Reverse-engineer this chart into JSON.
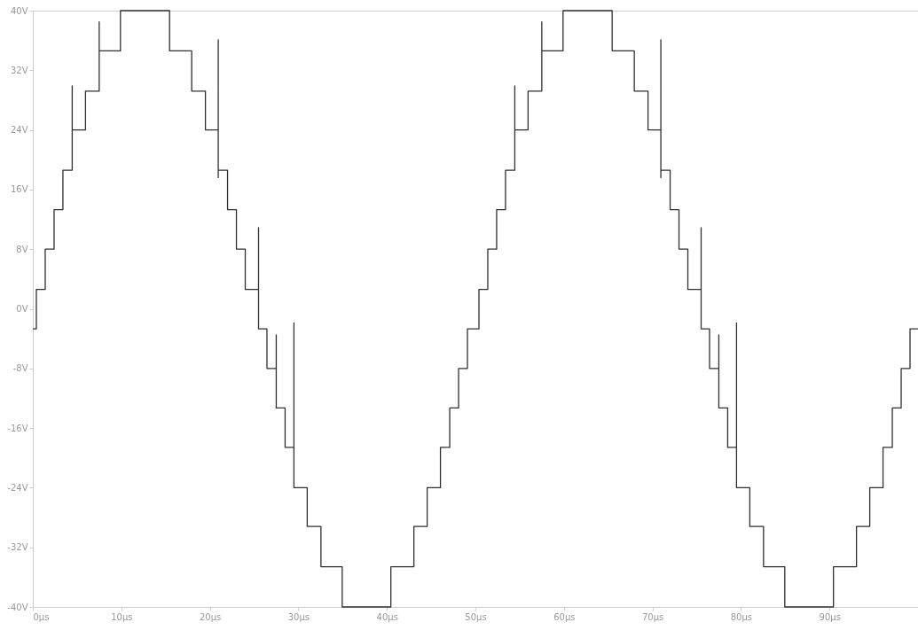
{
  "chart_data": {
    "type": "line",
    "x": [
      0,
      0.4,
      0.4,
      1.4,
      1.4,
      2.4,
      2.4,
      3.4,
      3.4,
      4.45,
      4.45,
      4.45,
      5.95,
      5.95,
      7.5,
      7.5,
      7.5,
      9.9,
      9.9,
      15.45,
      15.45,
      17.95,
      17.95,
      19.5,
      19.5,
      20.95,
      20.95,
      20.95,
      20.95,
      22,
      22,
      23,
      23,
      24,
      24,
      25.5,
      25.5,
      25.5,
      26.45,
      26.45,
      27.5,
      27.5,
      27.5,
      28.5,
      28.5,
      29.5,
      29.5,
      29.5,
      31,
      31,
      32.55,
      32.55,
      34.95,
      34.95,
      40.45,
      40.45,
      43.05,
      43.05,
      44.55,
      44.55,
      46.05,
      46.05,
      47.1,
      47.1,
      48.1,
      48.1,
      49.1,
      49.1,
      50.4,
      50.4,
      51.4,
      51.4,
      52.4,
      52.4,
      53.4,
      53.4,
      54.45,
      54.45,
      54.45,
      55.95,
      55.95,
      57.5,
      57.5,
      57.5,
      59.9,
      59.9,
      65.45,
      65.45,
      67.95,
      67.95,
      69.5,
      69.5,
      70.95,
      70.95,
      70.95,
      70.95,
      72,
      72,
      73,
      73,
      74,
      74,
      75.5,
      75.5,
      75.5,
      76.45,
      76.45,
      77.5,
      77.5,
      77.5,
      78.5,
      78.5,
      79.5,
      79.5,
      79.5,
      81,
      81,
      82.55,
      82.55,
      84.95,
      84.95,
      90.45,
      90.45,
      93.05,
      93.05,
      94.55,
      94.55,
      96.05,
      96.05,
      97.1,
      97.1,
      98.1,
      98.1,
      99.1,
      99.1,
      100
    ],
    "series": [
      {
        "color": "#303030",
        "values": [
          -2.7,
          -2.7,
          2.6,
          2.6,
          8,
          8,
          13.3,
          13.3,
          18.6,
          18.6,
          29.9,
          24,
          24,
          29.2,
          29.2,
          38.5,
          34.6,
          34.6,
          40,
          40,
          34.6,
          34.6,
          29.2,
          29.2,
          24,
          24,
          36.1,
          17.6,
          18.6,
          18.6,
          13.3,
          13.3,
          8,
          8,
          2.6,
          2.6,
          10.9,
          -2.7,
          -2.7,
          -8,
          -8,
          -3.5,
          -13.3,
          -13.3,
          -18.6,
          -18.6,
          -1.9,
          -24,
          -24,
          -29.2,
          -29.2,
          -34.6,
          -34.6,
          -40,
          -40,
          -34.6,
          -34.6,
          -29.2,
          -29.2,
          -24,
          -24,
          -18.6,
          -18.6,
          -13.3,
          -13.3,
          -8,
          -8,
          -2.7,
          -2.7,
          2.6,
          2.6,
          8,
          8,
          13.3,
          13.3,
          18.6,
          18.6,
          29.9,
          24,
          24,
          29.2,
          29.2,
          38.5,
          34.6,
          34.6,
          40,
          40,
          34.6,
          34.6,
          29.2,
          29.2,
          24,
          24,
          36.1,
          17.6,
          18.6,
          18.6,
          13.3,
          13.3,
          8,
          8,
          2.6,
          2.6,
          10.9,
          -2.7,
          -2.7,
          -8,
          -8,
          -3.5,
          -13.3,
          -13.3,
          -18.6,
          -18.6,
          -1.9,
          -24,
          -24,
          -29.2,
          -29.2,
          -34.6,
          -34.6,
          -40,
          -40,
          -34.6,
          -34.6,
          -29.2,
          -29.2,
          -24,
          -24,
          -18.6,
          -18.6,
          -13.3,
          -13.3,
          -8,
          -8,
          -2.7,
          -2.7
        ]
      }
    ],
    "xlim": [
      0,
      100
    ],
    "xticks": [
      {
        "value": 0,
        "label": "0µs"
      },
      {
        "value": 10,
        "label": "10µs"
      },
      {
        "value": 20,
        "label": "20µs"
      },
      {
        "value": 30,
        "label": "30µs"
      },
      {
        "value": 40,
        "label": "40µs"
      },
      {
        "value": 50,
        "label": "50µs"
      },
      {
        "value": 60,
        "label": "60µs"
      },
      {
        "value": 70,
        "label": "70µs"
      },
      {
        "value": 80,
        "label": "80µs"
      },
      {
        "value": 90,
        "label": "90µs"
      }
    ],
    "ylim": [
      -40,
      40
    ],
    "yticks": [
      {
        "value": -40,
        "label": "-40V"
      },
      {
        "value": -32,
        "label": "-32V"
      },
      {
        "value": -24,
        "label": "-24V"
      },
      {
        "value": -16,
        "label": "-16V"
      },
      {
        "value": -8,
        "label": "-8V"
      },
      {
        "value": 0,
        "label": "0V"
      },
      {
        "value": 8,
        "label": "8V"
      },
      {
        "value": 16,
        "label": "16V"
      },
      {
        "value": 24,
        "label": "24V"
      },
      {
        "value": 32,
        "label": "32V"
      },
      {
        "value": 40,
        "label": "40V"
      }
    ],
    "grid": false
  }
}
